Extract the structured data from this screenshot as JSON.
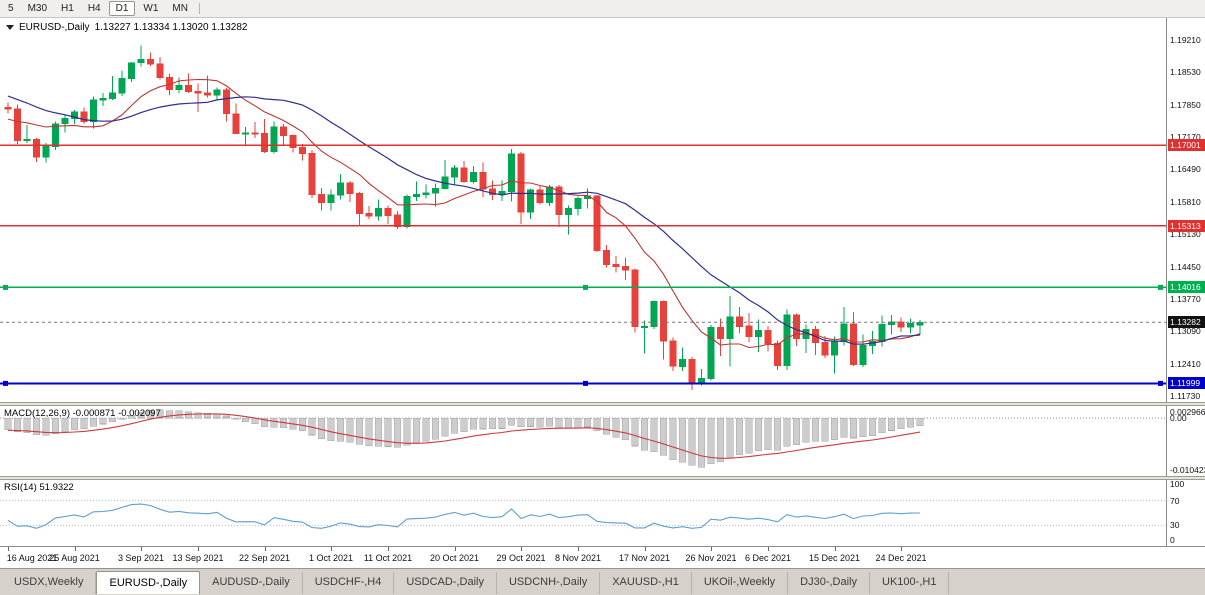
{
  "toolbar": {
    "timeframes": [
      "5",
      "M30",
      "H1",
      "H4",
      "D1",
      "W1",
      "MN"
    ],
    "active": "D1"
  },
  "chart": {
    "title": {
      "symbol": "EURUSD-,Daily",
      "ohlc": "1.13227 1.13334 1.13020 1.13282"
    },
    "price_top": 1.1967,
    "price_scale": 4764,
    "price_axis": [
      "1.19210",
      "1.18530",
      "1.17850",
      "1.17170",
      "1.16490",
      "1.15810",
      "1.15130",
      "1.14450",
      "1.13770",
      "1.13090",
      "1.12410",
      "1.11730"
    ],
    "levels": [
      {
        "label": "1.17001",
        "value": 1.17001,
        "color": "#e03030",
        "width": 1.3,
        "handles": false
      },
      {
        "label": "1.15313",
        "value": 1.15313,
        "color": "#e03030",
        "width": 1.3,
        "handles": false
      },
      {
        "label": "1.14016",
        "value": 1.14016,
        "color": "#00b050",
        "width": 1.6,
        "handles": true
      },
      {
        "label": "1.11999",
        "value": 1.11999,
        "color": "#0000cc",
        "width": 2,
        "handles": true
      }
    ],
    "current_price": {
      "label": "1.13282",
      "value": 1.13282
    },
    "date_ticks": [
      {
        "i": 0,
        "label": "16 Aug 2021"
      },
      {
        "i": 7,
        "label": "25 Aug 2021"
      },
      {
        "i": 14,
        "label": "3 Sep 2021"
      },
      {
        "i": 20,
        "label": "13 Sep 2021"
      },
      {
        "i": 27,
        "label": "22 Sep 2021"
      },
      {
        "i": 34,
        "label": "1 Oct 2021"
      },
      {
        "i": 40,
        "label": "11 Oct 2021"
      },
      {
        "i": 47,
        "label": "20 Oct 2021"
      },
      {
        "i": 54,
        "label": "29 Oct 2021"
      },
      {
        "i": 60,
        "label": "8 Nov 2021"
      },
      {
        "i": 67,
        "label": "17 Nov 2021"
      },
      {
        "i": 74,
        "label": "26 Nov 2021"
      },
      {
        "i": 80,
        "label": "6 Dec 2021"
      },
      {
        "i": 87,
        "label": "15 Dec 2021"
      },
      {
        "i": 94,
        "label": "24 Dec 2021"
      }
    ]
  },
  "indicators": {
    "macd": {
      "name": "MACD(12,26,9)",
      "values": "-0.000871 -0.002097",
      "axis_max": "0.002966",
      "axis_zero": "0.00",
      "axis_min": "-0.010423"
    },
    "rsi": {
      "name": "RSI(14)",
      "value": "51.9322",
      "axis": [
        "100",
        "70",
        "30",
        "0"
      ],
      "upper": 70,
      "lower": 30
    }
  },
  "colors": {
    "bull": "#00a651",
    "bear": "#e8403a",
    "ma_fast": "#c03434",
    "ma_slow": "#2d2f8f",
    "rsi": "#5e9fd4",
    "histogram": "#cdcdcd",
    "histogram_border": "#a5a5a5",
    "macd_signal": "#cc3b3b",
    "price_badge_bg": "#111111"
  },
  "chart_data": {
    "type": "candlestick",
    "symbol": "EURUSD-",
    "timeframe": "Daily",
    "ma_fast_period": 10,
    "ma_slow_period": 21,
    "indicator_seed_closes": [
      1.1868,
      1.1862,
      1.1855,
      1.185,
      1.1845,
      1.184,
      1.187,
      1.1861,
      1.1839,
      1.1828,
      1.18,
      1.1761,
      1.1738,
      1.1722,
      1.1739,
      1.173,
      1.1745,
      1.1762,
      1.178,
      1.1795
    ],
    "candles": [
      [
        1.1779,
        1.179,
        1.1767,
        1.1776
      ],
      [
        1.1776,
        1.1785,
        1.1702,
        1.171
      ],
      [
        1.171,
        1.1742,
        1.1705,
        1.1712
      ],
      [
        1.1712,
        1.1715,
        1.1665,
        1.1675
      ],
      [
        1.1675,
        1.1705,
        1.1664,
        1.1697
      ],
      [
        1.1697,
        1.175,
        1.169,
        1.1745
      ],
      [
        1.1745,
        1.1765,
        1.1727,
        1.1756
      ],
      [
        1.1756,
        1.1774,
        1.1744,
        1.177
      ],
      [
        1.177,
        1.1779,
        1.1745,
        1.175
      ],
      [
        1.175,
        1.1802,
        1.1735,
        1.1795
      ],
      [
        1.1795,
        1.181,
        1.1782,
        1.1798
      ],
      [
        1.1798,
        1.1845,
        1.1795,
        1.181
      ],
      [
        1.181,
        1.1857,
        1.1803,
        1.184
      ],
      [
        1.184,
        1.1875,
        1.1833,
        1.1873
      ],
      [
        1.1873,
        1.1909,
        1.1865,
        1.188
      ],
      [
        1.188,
        1.1895,
        1.1866,
        1.187
      ],
      [
        1.187,
        1.1885,
        1.1838,
        1.1842
      ],
      [
        1.1842,
        1.185,
        1.1805,
        1.1817
      ],
      [
        1.1817,
        1.1842,
        1.181,
        1.1825
      ],
      [
        1.1825,
        1.1851,
        1.181,
        1.1813
      ],
      [
        1.1813,
        1.183,
        1.177,
        1.181
      ],
      [
        1.181,
        1.1846,
        1.18,
        1.1805
      ],
      [
        1.1805,
        1.1821,
        1.1795,
        1.1816
      ],
      [
        1.1816,
        1.182,
        1.175,
        1.1766
      ],
      [
        1.1766,
        1.1788,
        1.1725,
        1.1725
      ],
      [
        1.1725,
        1.1738,
        1.17,
        1.1726
      ],
      [
        1.1726,
        1.1749,
        1.1715,
        1.1725
      ],
      [
        1.1725,
        1.1755,
        1.1684,
        1.1687
      ],
      [
        1.1687,
        1.175,
        1.1683,
        1.1738
      ],
      [
        1.1738,
        1.1745,
        1.1701,
        1.172
      ],
      [
        1.172,
        1.1722,
        1.1685,
        1.1695
      ],
      [
        1.1695,
        1.1703,
        1.1668,
        1.1683
      ],
      [
        1.1683,
        1.169,
        1.1589,
        1.1597
      ],
      [
        1.1597,
        1.161,
        1.1563,
        1.158
      ],
      [
        1.158,
        1.1607,
        1.1563,
        1.1595
      ],
      [
        1.1595,
        1.164,
        1.1586,
        1.1621
      ],
      [
        1.1621,
        1.1625,
        1.1581,
        1.1599
      ],
      [
        1.1599,
        1.1602,
        1.1529,
        1.1557
      ],
      [
        1.1557,
        1.1572,
        1.1545,
        1.1551
      ],
      [
        1.1551,
        1.1586,
        1.1542,
        1.1567
      ],
      [
        1.1567,
        1.1573,
        1.1535,
        1.1553
      ],
      [
        1.1553,
        1.1562,
        1.1524,
        1.1529
      ],
      [
        1.1529,
        1.1597,
        1.1525,
        1.1592
      ],
      [
        1.1592,
        1.1624,
        1.1583,
        1.1596
      ],
      [
        1.1596,
        1.1618,
        1.1588,
        1.16
      ],
      [
        1.16,
        1.162,
        1.1571,
        1.1609
      ],
      [
        1.1609,
        1.1669,
        1.1607,
        1.1633
      ],
      [
        1.1633,
        1.1658,
        1.1617,
        1.1652
      ],
      [
        1.1652,
        1.1667,
        1.1621,
        1.1624
      ],
      [
        1.1624,
        1.1656,
        1.162,
        1.1643
      ],
      [
        1.1643,
        1.1664,
        1.1591,
        1.1608
      ],
      [
        1.1608,
        1.1626,
        1.1585,
        1.1596
      ],
      [
        1.1596,
        1.1626,
        1.1583,
        1.1603
      ],
      [
        1.1603,
        1.1692,
        1.1582,
        1.1682
      ],
      [
        1.1682,
        1.1686,
        1.1535,
        1.156
      ],
      [
        1.156,
        1.1609,
        1.1545,
        1.1606
      ],
      [
        1.1606,
        1.1614,
        1.1575,
        1.158
      ],
      [
        1.158,
        1.1616,
        1.1572,
        1.1612
      ],
      [
        1.1612,
        1.1616,
        1.1528,
        1.1555
      ],
      [
        1.1555,
        1.1573,
        1.1513,
        1.1567
      ],
      [
        1.1567,
        1.1592,
        1.1552,
        1.1588
      ],
      [
        1.1588,
        1.1609,
        1.1567,
        1.1593
      ],
      [
        1.1593,
        1.1595,
        1.1476,
        1.1479
      ],
      [
        1.1479,
        1.149,
        1.1443,
        1.145
      ],
      [
        1.145,
        1.1467,
        1.1433,
        1.1445
      ],
      [
        1.1445,
        1.1464,
        1.1417,
        1.1438
      ],
      [
        1.1438,
        1.1441,
        1.1307,
        1.1319
      ],
      [
        1.1319,
        1.1332,
        1.1263,
        1.1319
      ],
      [
        1.1319,
        1.1374,
        1.1314,
        1.1372
      ],
      [
        1.1372,
        1.1374,
        1.125,
        1.1289
      ],
      [
        1.1289,
        1.1296,
        1.1226,
        1.1236
      ],
      [
        1.1236,
        1.1275,
        1.1226,
        1.125
      ],
      [
        1.125,
        1.1255,
        1.1186,
        1.12
      ],
      [
        1.12,
        1.123,
        1.1196,
        1.121
      ],
      [
        1.121,
        1.1323,
        1.1206,
        1.1317
      ],
      [
        1.1317,
        1.1336,
        1.1258,
        1.1294
      ],
      [
        1.1294,
        1.1383,
        1.1235,
        1.1339
      ],
      [
        1.1339,
        1.136,
        1.1305,
        1.132
      ],
      [
        1.132,
        1.1348,
        1.1287,
        1.1298
      ],
      [
        1.1298,
        1.1334,
        1.1266,
        1.1311
      ],
      [
        1.1311,
        1.132,
        1.1267,
        1.1284
      ],
      [
        1.1284,
        1.129,
        1.1228,
        1.1238
      ],
      [
        1.1238,
        1.1355,
        1.1228,
        1.1344
      ],
      [
        1.1344,
        1.1347,
        1.1279,
        1.1294
      ],
      [
        1.1294,
        1.1324,
        1.1264,
        1.1313
      ],
      [
        1.1313,
        1.132,
        1.126,
        1.1286
      ],
      [
        1.1286,
        1.13,
        1.1253,
        1.126
      ],
      [
        1.126,
        1.1298,
        1.1221,
        1.1288
      ],
      [
        1.1288,
        1.136,
        1.128,
        1.1325
      ],
      [
        1.1325,
        1.135,
        1.1236,
        1.124
      ],
      [
        1.124,
        1.1303,
        1.1234,
        1.128
      ],
      [
        1.128,
        1.131,
        1.1262,
        1.1288
      ],
      [
        1.1288,
        1.1343,
        1.1277,
        1.1324
      ],
      [
        1.1324,
        1.1344,
        1.1303,
        1.1329
      ],
      [
        1.1329,
        1.1338,
        1.1308,
        1.1318
      ],
      [
        1.1318,
        1.1336,
        1.1305,
        1.1326
      ],
      [
        1.13227,
        1.13334,
        1.1302,
        1.13282
      ]
    ]
  },
  "tabs": [
    {
      "label": "USDX,Weekly",
      "active": false
    },
    {
      "label": "EURUSD-,Daily",
      "active": true
    },
    {
      "label": "AUDUSD-,Daily",
      "active": false
    },
    {
      "label": "USDCHF-,H4",
      "active": false
    },
    {
      "label": "USDCAD-,Daily",
      "active": false
    },
    {
      "label": "USDCNH-,Daily",
      "active": false
    },
    {
      "label": "XAUUSD-,H1",
      "active": false
    },
    {
      "label": "UKOil-,Weekly",
      "active": false
    },
    {
      "label": "DJ30-,Daily",
      "active": false
    },
    {
      "label": "UK100-,H1",
      "active": false
    }
  ]
}
